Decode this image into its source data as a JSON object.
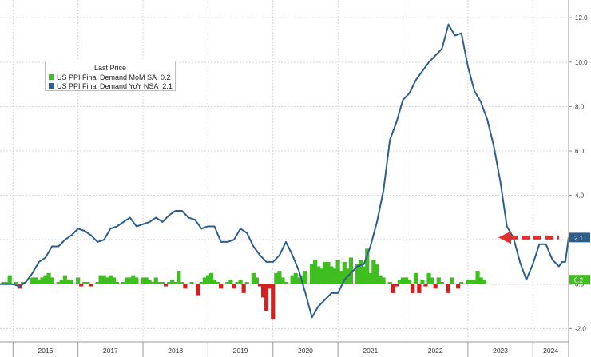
{
  "chart_data": {
    "type": "bar+line",
    "legend": {
      "title": "Last Price",
      "items": [
        {
          "name": "US PPI Final Demand MoM SA",
          "value": "0.2",
          "color": "#3fbf1f",
          "kind": "bar"
        },
        {
          "name": "US PPI Final Demand YoY NSA",
          "value": "2.1",
          "color": "#2d5e8e",
          "kind": "line"
        }
      ],
      "placement": "top-left"
    },
    "x_tick_labels": [
      "2016",
      "2017",
      "2018",
      "2019",
      "2020",
      "2021",
      "2022",
      "2023",
      "2024"
    ],
    "y_tick_labels": [
      "-2.0",
      "0.0",
      "2.0",
      "4.0",
      "6.0",
      "8.0",
      "10.0",
      "12.0"
    ],
    "y_axis_side": "right",
    "ylim": [
      -2.6,
      12.8
    ],
    "grid": true,
    "start_year": 2015.8,
    "end_year": 2024.55,
    "last_value_tags": [
      {
        "label": "2.1",
        "series": "yoy",
        "color": "#2d5e8e"
      },
      {
        "label": "0.2",
        "series": "mom",
        "color": "#3fbf1f"
      }
    ],
    "annotation": {
      "type": "dashed-arrow",
      "color": "#e03030",
      "y": 2.1
    },
    "series": [
      {
        "name": "US PPI Final Demand YoY NSA",
        "type": "line",
        "color": "#2d5e8e",
        "points": [
          [
            2015.8,
            0.0
          ],
          [
            2016.0,
            0.0
          ],
          [
            2016.1,
            -0.1
          ],
          [
            2016.2,
            0.1
          ],
          [
            2016.3,
            0.5
          ],
          [
            2016.4,
            1.0
          ],
          [
            2016.5,
            1.2
          ],
          [
            2016.6,
            1.7
          ],
          [
            2016.7,
            1.7
          ],
          [
            2016.8,
            2.0
          ],
          [
            2016.9,
            2.2
          ],
          [
            2017.0,
            2.5
          ],
          [
            2017.1,
            2.4
          ],
          [
            2017.2,
            2.2
          ],
          [
            2017.3,
            1.9
          ],
          [
            2017.4,
            2.0
          ],
          [
            2017.5,
            2.5
          ],
          [
            2017.6,
            2.6
          ],
          [
            2017.7,
            2.8
          ],
          [
            2017.8,
            3.0
          ],
          [
            2017.9,
            2.6
          ],
          [
            2018.0,
            2.7
          ],
          [
            2018.1,
            2.8
          ],
          [
            2018.2,
            3.0
          ],
          [
            2018.3,
            2.8
          ],
          [
            2018.4,
            3.1
          ],
          [
            2018.5,
            3.3
          ],
          [
            2018.6,
            3.3
          ],
          [
            2018.7,
            3.0
          ],
          [
            2018.8,
            2.9
          ],
          [
            2018.9,
            2.5
          ],
          [
            2019.0,
            2.6
          ],
          [
            2019.1,
            2.6
          ],
          [
            2019.2,
            1.9
          ],
          [
            2019.3,
            1.9
          ],
          [
            2019.4,
            2.0
          ],
          [
            2019.5,
            2.5
          ],
          [
            2019.6,
            2.3
          ],
          [
            2019.7,
            1.7
          ],
          [
            2019.8,
            1.3
          ],
          [
            2019.9,
            1.0
          ],
          [
            2020.0,
            1.0
          ],
          [
            2020.1,
            1.3
          ],
          [
            2020.2,
            1.9
          ],
          [
            2020.3,
            1.3
          ],
          [
            2020.4,
            0.6
          ],
          [
            2020.5,
            -0.4
          ],
          [
            2020.6,
            -1.5
          ],
          [
            2020.7,
            -1.0
          ],
          [
            2020.8,
            -0.7
          ],
          [
            2020.9,
            -0.4
          ],
          [
            2021.0,
            -0.4
          ],
          [
            2021.1,
            0.2
          ],
          [
            2021.2,
            0.5
          ],
          [
            2021.3,
            0.8
          ],
          [
            2021.4,
            0.9
          ],
          [
            2021.5,
            1.7
          ],
          [
            2021.6,
            2.8
          ],
          [
            2021.7,
            4.2
          ],
          [
            2021.8,
            6.5
          ],
          [
            2021.9,
            7.3
          ],
          [
            2022.0,
            8.3
          ],
          [
            2022.1,
            8.6
          ],
          [
            2022.2,
            9.2
          ],
          [
            2022.3,
            9.6
          ],
          [
            2022.4,
            10.0
          ],
          [
            2022.5,
            10.3
          ],
          [
            2022.6,
            10.6
          ],
          [
            2022.7,
            11.7
          ],
          [
            2022.8,
            11.2
          ],
          [
            2022.9,
            11.3
          ],
          [
            2023.0,
            9.8
          ],
          [
            2023.1,
            8.7
          ],
          [
            2023.2,
            8.2
          ],
          [
            2023.3,
            7.4
          ],
          [
            2023.4,
            6.2
          ],
          [
            2023.5,
            4.6
          ],
          [
            2023.6,
            2.6
          ],
          [
            2023.7,
            2.1
          ],
          [
            2023.8,
            1.0
          ],
          [
            2023.9,
            0.2
          ],
          [
            2024.0,
            0.9
          ],
          [
            2024.1,
            1.8
          ],
          [
            2024.2,
            1.8
          ],
          [
            2024.3,
            1.1
          ],
          [
            2024.4,
            0.8
          ],
          [
            2024.45,
            1.0
          ],
          [
            2024.5,
            1.0
          ],
          [
            2024.55,
            2.1
          ]
        ]
      },
      {
        "name": "US PPI Final Demand MoM SA",
        "type": "bar",
        "color_positive": "#3fbf1f",
        "color_negative": "#d42020",
        "bars": [
          [
            2015.85,
            0.1
          ],
          [
            2015.9,
            0.1
          ],
          [
            2015.95,
            0.4
          ],
          [
            2016.05,
            0.1
          ],
          [
            2016.1,
            -0.2
          ],
          [
            2016.15,
            0.1
          ],
          [
            2016.3,
            0.3
          ],
          [
            2016.35,
            0.3
          ],
          [
            2016.4,
            0.2
          ],
          [
            2016.45,
            0.3
          ],
          [
            2016.5,
            0.4
          ],
          [
            2016.55,
            0.5
          ],
          [
            2016.6,
            0.3
          ],
          [
            2016.7,
            0.1
          ],
          [
            2016.75,
            0.2
          ],
          [
            2016.8,
            0.4
          ],
          [
            2016.85,
            0.2
          ],
          [
            2016.9,
            0.2
          ],
          [
            2017.0,
            0.3
          ],
          [
            2017.05,
            -0.1
          ],
          [
            2017.1,
            0.1
          ],
          [
            2017.15,
            0.1
          ],
          [
            2017.2,
            -0.1
          ],
          [
            2017.3,
            0.1
          ],
          [
            2017.35,
            0.4
          ],
          [
            2017.4,
            0.4
          ],
          [
            2017.45,
            0.3
          ],
          [
            2017.5,
            0.4
          ],
          [
            2017.55,
            0.3
          ],
          [
            2017.6,
            0.1
          ],
          [
            2017.7,
            0.1
          ],
          [
            2017.75,
            0.3
          ],
          [
            2017.8,
            0.3
          ],
          [
            2017.85,
            0.4
          ],
          [
            2017.9,
            0.3
          ],
          [
            2018.0,
            0.3
          ],
          [
            2018.05,
            0.3
          ],
          [
            2018.1,
            0.2
          ],
          [
            2018.15,
            0.1
          ],
          [
            2018.2,
            0.3
          ],
          [
            2018.25,
            0.1
          ],
          [
            2018.3,
            0.1
          ],
          [
            2018.35,
            -0.1
          ],
          [
            2018.4,
            0.1
          ],
          [
            2018.45,
            0.2
          ],
          [
            2018.5,
            0.1
          ],
          [
            2018.55,
            0.6
          ],
          [
            2018.6,
            0.1
          ],
          [
            2018.65,
            -0.2
          ],
          [
            2018.75,
            0.1
          ],
          [
            2018.85,
            -0.5
          ],
          [
            2018.9,
            0.1
          ],
          [
            2018.95,
            0.3
          ],
          [
            2019.0,
            0.4
          ],
          [
            2019.05,
            0.5
          ],
          [
            2019.1,
            0.2
          ],
          [
            2019.15,
            0.1
          ],
          [
            2019.2,
            -0.2
          ],
          [
            2019.3,
            0.1
          ],
          [
            2019.35,
            0.2
          ],
          [
            2019.4,
            -0.2
          ],
          [
            2019.45,
            0.1
          ],
          [
            2019.5,
            0.2
          ],
          [
            2019.55,
            -0.4
          ],
          [
            2019.6,
            0.1
          ],
          [
            2019.7,
            0.5
          ],
          [
            2019.75,
            0.3
          ],
          [
            2019.8,
            -0.1
          ],
          [
            2019.85,
            -0.6
          ],
          [
            2019.9,
            -1.2
          ],
          [
            2019.95,
            -0.2
          ],
          [
            2020.0,
            -1.6
          ],
          [
            2020.05,
            0.5
          ],
          [
            2020.1,
            0.6
          ],
          [
            2020.15,
            0.3
          ],
          [
            2020.2,
            0.1
          ],
          [
            2020.3,
            0.4
          ],
          [
            2020.35,
            0.5
          ],
          [
            2020.4,
            0.3
          ],
          [
            2020.45,
            0.4
          ],
          [
            2020.5,
            0.6
          ],
          [
            2020.6,
            0.9
          ],
          [
            2020.65,
            1.1
          ],
          [
            2020.7,
            0.8
          ],
          [
            2020.75,
            0.7
          ],
          [
            2020.8,
            1.0
          ],
          [
            2020.85,
            1.0
          ],
          [
            2020.9,
            0.8
          ],
          [
            2020.95,
            0.7
          ],
          [
            2021.0,
            1.1
          ],
          [
            2021.05,
            0.6
          ],
          [
            2021.1,
            1.0
          ],
          [
            2021.15,
            0.7
          ],
          [
            2021.2,
            1.2
          ],
          [
            2021.3,
            0.9
          ],
          [
            2021.35,
            1.1
          ],
          [
            2021.4,
            0.8
          ],
          [
            2021.45,
            1.6
          ],
          [
            2021.5,
            0.5
          ],
          [
            2021.55,
            1.1
          ],
          [
            2021.6,
            0.9
          ],
          [
            2021.65,
            0.4
          ],
          [
            2021.7,
            0.3
          ],
          [
            2021.8,
            0.1
          ],
          [
            2021.85,
            -0.4
          ],
          [
            2021.9,
            -0.1
          ],
          [
            2021.95,
            0.2
          ],
          [
            2022.0,
            0.3
          ],
          [
            2022.05,
            0.3
          ],
          [
            2022.1,
            0.2
          ],
          [
            2022.15,
            -0.4
          ],
          [
            2022.2,
            0.5
          ],
          [
            2022.25,
            -0.4
          ],
          [
            2022.3,
            0.2
          ],
          [
            2022.35,
            -0.1
          ],
          [
            2022.4,
            0.5
          ],
          [
            2022.45,
            0.3
          ],
          [
            2022.5,
            -0.2
          ],
          [
            2022.55,
            0.3
          ],
          [
            2022.6,
            0.1
          ],
          [
            2022.7,
            -0.4
          ],
          [
            2022.75,
            0.3
          ],
          [
            2022.85,
            -0.2
          ],
          [
            2022.9,
            0.1
          ],
          [
            2023.0,
            0.2
          ],
          [
            2023.05,
            0.2
          ],
          [
            2023.1,
            0.2
          ],
          [
            2023.15,
            0.6
          ],
          [
            2023.2,
            0.3
          ],
          [
            2023.25,
            0.2
          ]
        ]
      }
    ]
  }
}
